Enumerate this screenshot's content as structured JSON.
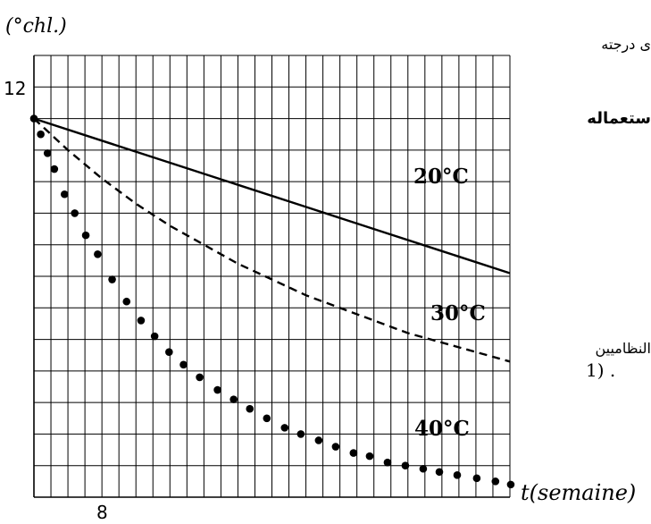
{
  "chart_data": {
    "type": "line",
    "ylabel": "(°chl.)",
    "xlabel": "t(semaine)",
    "y_tick_label": "12",
    "x_tick_label": "8",
    "grid": true,
    "x_range": [
      0,
      56
    ],
    "y_range": [
      0,
      14
    ],
    "series": [
      {
        "name": "20°C",
        "style": "solid",
        "x": [
          0,
          8,
          16,
          24,
          32,
          40,
          48,
          56
        ],
        "y": [
          12,
          11.3,
          10.6,
          9.9,
          9.2,
          8.5,
          7.8,
          7.1
        ]
      },
      {
        "name": "30°C",
        "style": "dashed",
        "x": [
          0,
          4,
          8,
          12,
          16,
          20,
          24,
          28,
          32,
          36,
          40,
          44,
          48,
          52,
          56
        ],
        "y": [
          12,
          11.0,
          10.1,
          9.3,
          8.6,
          8.0,
          7.4,
          6.9,
          6.4,
          6.0,
          5.6,
          5.2,
          4.9,
          4.6,
          4.3
        ]
      },
      {
        "name": "40°C",
        "style": "dotted",
        "x": [
          0,
          0.8,
          1.6,
          2.4,
          3.6,
          4.8,
          6.1,
          7.5,
          9.2,
          10.9,
          12.6,
          14.2,
          15.9,
          17.6,
          19.5,
          21.6,
          23.5,
          25.4,
          27.4,
          29.5,
          31.4,
          33.5,
          35.5,
          37.6,
          39.5,
          41.6,
          43.7,
          45.8,
          47.7,
          49.8,
          52.1,
          54.3,
          56.1
        ],
        "y": [
          12,
          11.5,
          10.9,
          10.4,
          9.6,
          9.0,
          8.3,
          7.7,
          6.9,
          6.2,
          5.6,
          5.1,
          4.6,
          4.2,
          3.8,
          3.4,
          3.1,
          2.8,
          2.5,
          2.2,
          2.0,
          1.8,
          1.6,
          1.4,
          1.3,
          1.1,
          1.0,
          0.9,
          0.8,
          0.7,
          0.6,
          0.5,
          0.4
        ]
      }
    ]
  },
  "side_text": {
    "line1": "ى درجته",
    "line2": "ستعماله",
    "line3": "النظاميين",
    "line4": "1) ."
  }
}
